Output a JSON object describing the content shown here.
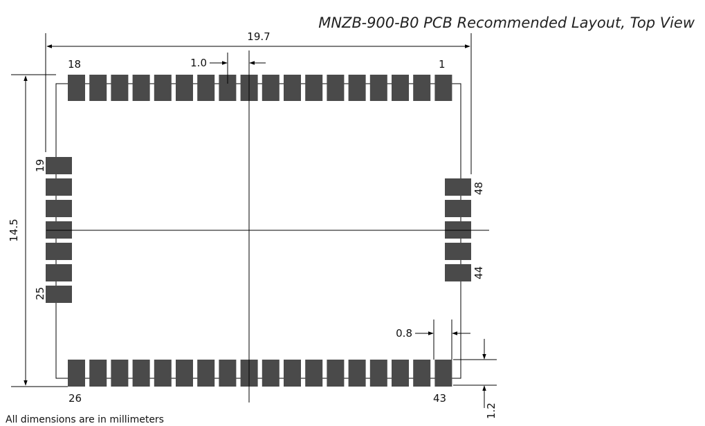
{
  "title": "MNZB-900-B0 PCB Recommended Layout, Top View",
  "dimensions": {
    "width": "19.7",
    "height": "14.5",
    "pad_pitch": "1.0",
    "pad_width": "0.8",
    "pad_offset": "1.2"
  },
  "pin_labels": {
    "p1": "1",
    "p18": "18",
    "p19": "19",
    "p25": "25",
    "p26": "26",
    "p43": "43",
    "p44": "44",
    "p48": "48"
  },
  "footnote": "All dimensions are in millimeters",
  "colors": {
    "pad": "#4a4a4a",
    "line": "#000000"
  }
}
